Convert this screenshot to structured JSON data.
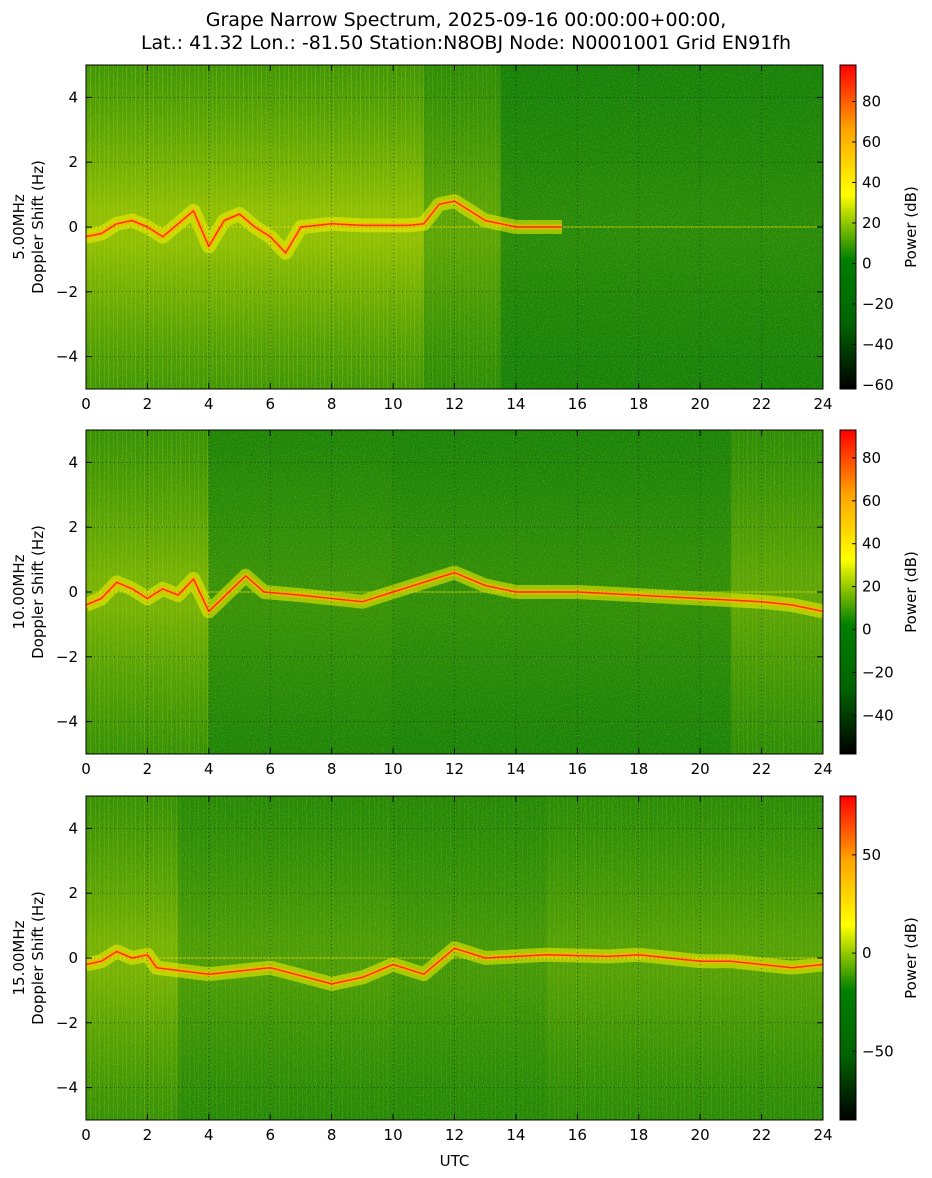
{
  "title_line_1": "Grape Narrow Spectrum, 2025-09-16 00:00:00+00:00,",
  "title_line_2": "Lat.: 41.32 Lon.: -81.50 Station:N8OBJ Node: N0001001 Grid EN91fh",
  "colors": {
    "colormap": [
      "#000000",
      "#006400",
      "#008000",
      "#ffff00",
      "#ffa500",
      "#ff0000"
    ],
    "background_green": "#0a7a0a",
    "carrier_yellow": "#f5f000",
    "carrier_red": "#ff3000"
  },
  "chart_data": [
    {
      "type": "heatmap",
      "ylabel_line_1": "5.00MHz",
      "ylabel_line_2": "Doppler Shift (Hz)",
      "xlabel": "",
      "xlim": [
        0,
        24
      ],
      "ylim": [
        -5,
        5
      ],
      "x_ticks": [
        "0",
        "2",
        "4",
        "6",
        "8",
        "10",
        "12",
        "14",
        "16",
        "18",
        "20",
        "22",
        "24"
      ],
      "y_ticks": [
        "4",
        "2",
        "0",
        "−2",
        "−4"
      ],
      "grid": true,
      "colorbar": {
        "label": "Power (dB)",
        "range": [
          -62,
          98
        ],
        "ticks": [
          "80",
          "60",
          "40",
          "20",
          "0",
          "−20",
          "−40",
          "−60"
        ],
        "tick_values": [
          80,
          60,
          40,
          20,
          0,
          -20,
          -40,
          -60
        ]
      },
      "activity_bands": [
        {
          "from": 0,
          "to": 11,
          "intensity": 0.75
        },
        {
          "from": 11,
          "to": 13.5,
          "intensity": 0.45
        },
        {
          "from": 13.5,
          "to": 24,
          "intensity": 0.15
        }
      ],
      "doppler_trace": [
        [
          0,
          -0.3
        ],
        [
          0.5,
          -0.2
        ],
        [
          1,
          0.1
        ],
        [
          1.5,
          0.2
        ],
        [
          2,
          0.0
        ],
        [
          2.5,
          -0.3
        ],
        [
          3,
          0.1
        ],
        [
          3.5,
          0.5
        ],
        [
          4,
          -0.6
        ],
        [
          4.5,
          0.2
        ],
        [
          5,
          0.4
        ],
        [
          5.5,
          0.0
        ],
        [
          6,
          -0.3
        ],
        [
          6.5,
          -0.8
        ],
        [
          7,
          0.0
        ],
        [
          8,
          0.1
        ],
        [
          9,
          0.05
        ],
        [
          10,
          0.05
        ],
        [
          10.5,
          0.05
        ],
        [
          11,
          0.1
        ],
        [
          11.5,
          0.7
        ],
        [
          12,
          0.8
        ],
        [
          12.5,
          0.5
        ],
        [
          13,
          0.2
        ],
        [
          14,
          0.0
        ],
        [
          15.5,
          0.0
        ]
      ]
    },
    {
      "type": "heatmap",
      "ylabel_line_1": "10.00MHz",
      "ylabel_line_2": "Doppler Shift (Hz)",
      "xlabel": "",
      "xlim": [
        0,
        24
      ],
      "ylim": [
        -5,
        5
      ],
      "x_ticks": [
        "0",
        "2",
        "4",
        "6",
        "8",
        "10",
        "12",
        "14",
        "16",
        "18",
        "20",
        "22",
        "24"
      ],
      "y_ticks": [
        "4",
        "2",
        "0",
        "−2",
        "−4"
      ],
      "grid": true,
      "colorbar": {
        "label": "Power (dB)",
        "range": [
          -58,
          93
        ],
        "ticks": [
          "80",
          "60",
          "40",
          "20",
          "0",
          "−20",
          "−40"
        ],
        "tick_values": [
          80,
          60,
          40,
          20,
          0,
          -20,
          -40
        ]
      },
      "activity_bands": [
        {
          "from": 0,
          "to": 4,
          "intensity": 0.6
        },
        {
          "from": 4,
          "to": 10,
          "intensity": 0.25
        },
        {
          "from": 10,
          "to": 21,
          "intensity": 0.2
        },
        {
          "from": 21,
          "to": 24,
          "intensity": 0.45
        }
      ],
      "doppler_trace": [
        [
          0,
          -0.4
        ],
        [
          0.5,
          -0.2
        ],
        [
          1,
          0.3
        ],
        [
          1.5,
          0.1
        ],
        [
          2,
          -0.2
        ],
        [
          2.5,
          0.1
        ],
        [
          3,
          -0.1
        ],
        [
          3.5,
          0.4
        ],
        [
          4,
          -0.6
        ],
        [
          5.2,
          0.5
        ],
        [
          5.8,
          0.0
        ],
        [
          7,
          -0.1
        ],
        [
          9,
          -0.3
        ],
        [
          10,
          0.0
        ],
        [
          12,
          0.6
        ],
        [
          13,
          0.2
        ],
        [
          14,
          0.0
        ],
        [
          16,
          0.0
        ],
        [
          18,
          -0.1
        ],
        [
          20,
          -0.2
        ],
        [
          22,
          -0.3
        ],
        [
          23,
          -0.4
        ],
        [
          24,
          -0.6
        ]
      ]
    },
    {
      "type": "heatmap",
      "ylabel_line_1": "15.00MHz",
      "ylabel_line_2": "Doppler Shift (Hz)",
      "xlabel": "UTC",
      "xlim": [
        0,
        24
      ],
      "ylim": [
        -5,
        5
      ],
      "x_ticks": [
        "0",
        "2",
        "4",
        "6",
        "8",
        "10",
        "12",
        "14",
        "16",
        "18",
        "20",
        "22",
        "24"
      ],
      "y_ticks": [
        "4",
        "2",
        "0",
        "−2",
        "−4"
      ],
      "grid": true,
      "colorbar": {
        "label": "Power (dB)",
        "range": [
          -85,
          80
        ],
        "ticks": [
          "50",
          "0",
          "−50"
        ],
        "tick_values": [
          50,
          0,
          -50
        ]
      },
      "activity_bands": [
        {
          "from": 0,
          "to": 3,
          "intensity": 0.6
        },
        {
          "from": 3,
          "to": 10,
          "intensity": 0.35
        },
        {
          "from": 10,
          "to": 15,
          "intensity": 0.3
        },
        {
          "from": 15,
          "to": 24,
          "intensity": 0.4
        }
      ],
      "doppler_trace": [
        [
          0,
          -0.2
        ],
        [
          0.5,
          -0.1
        ],
        [
          1,
          0.2
        ],
        [
          1.5,
          0.0
        ],
        [
          2,
          0.1
        ],
        [
          2.3,
          -0.3
        ],
        [
          4,
          -0.5
        ],
        [
          6,
          -0.3
        ],
        [
          8,
          -0.8
        ],
        [
          9,
          -0.6
        ],
        [
          10,
          -0.2
        ],
        [
          11,
          -0.5
        ],
        [
          12,
          0.3
        ],
        [
          13,
          0.0
        ],
        [
          15,
          0.1
        ],
        [
          17,
          0.05
        ],
        [
          18,
          0.1
        ],
        [
          20,
          -0.1
        ],
        [
          21,
          -0.1
        ],
        [
          22,
          -0.2
        ],
        [
          23,
          -0.3
        ],
        [
          24,
          -0.2
        ]
      ]
    }
  ]
}
